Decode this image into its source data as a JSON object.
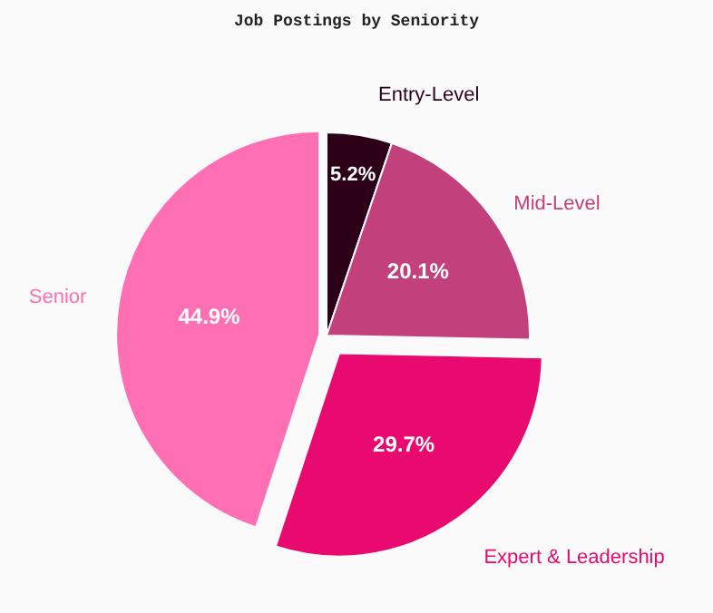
{
  "chart_data": {
    "type": "pie",
    "title": "Job Postings by Seniority",
    "categories": [
      "Entry-Level",
      "Mid-Level",
      "Expert & Leadership",
      "Senior"
    ],
    "values": [
      5.2,
      20.1,
      29.7,
      44.9
    ],
    "colors": [
      "#2e0018",
      "#c2407c",
      "#e80a6e",
      "#ff6fb3"
    ],
    "value_labels": [
      "5.2%",
      "20.1%",
      "29.7%",
      "44.9%"
    ]
  }
}
